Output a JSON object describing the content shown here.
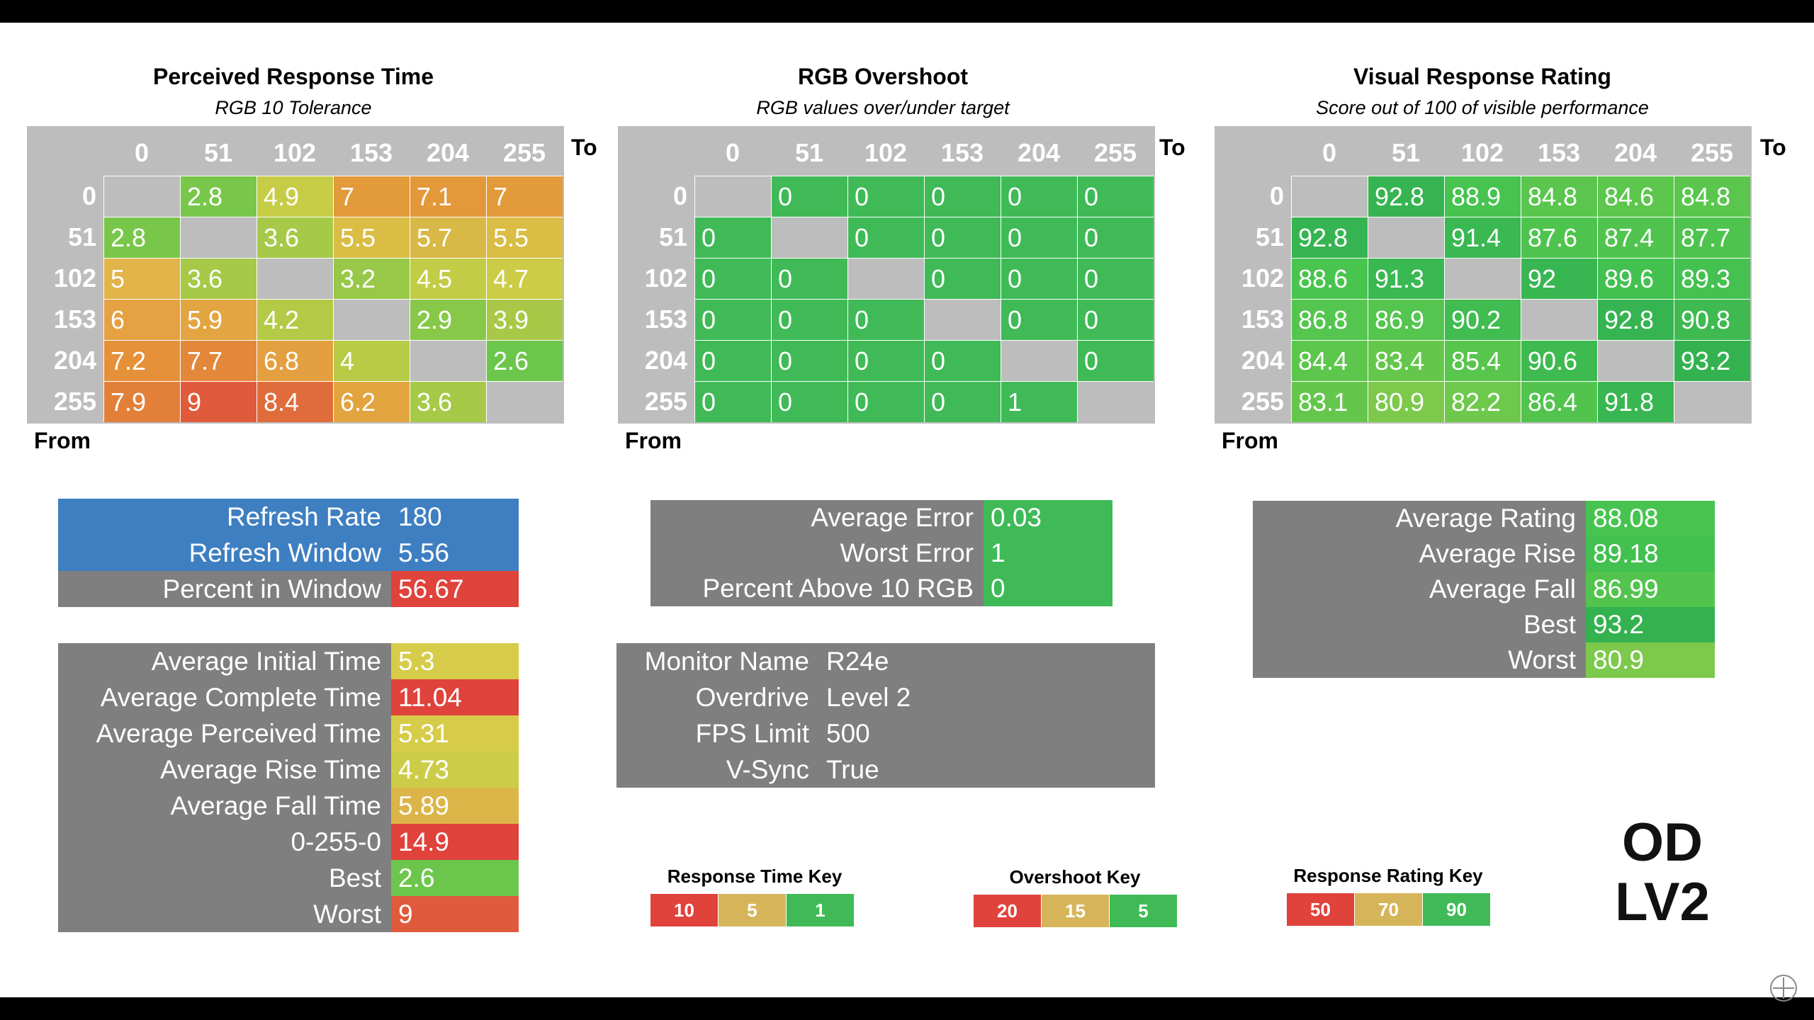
{
  "colors": {
    "gray_panel": "#7f7f7f",
    "blue_panel": "#3e7fc1",
    "header_gray": "#bdbdbd",
    "red": "#e0423c",
    "orange": "#e8a23c",
    "yellow": "#d6cc49",
    "lightgreen": "#8fcc4a",
    "green": "#3fba57",
    "darkgreen": "#2fae4f"
  },
  "response_time": {
    "title": "Perceived Response Time",
    "subtitle": "RGB 10 Tolerance",
    "to_label": "To",
    "from_label": "From",
    "columns": [
      "0",
      "51",
      "102",
      "153",
      "204",
      "255"
    ],
    "rows": [
      "0",
      "51",
      "102",
      "153",
      "204",
      "255"
    ],
    "cells": [
      [
        "",
        "2.8",
        "4.9",
        "7",
        "7.1",
        "7"
      ],
      [
        "2.8",
        "",
        "3.6",
        "5.5",
        "5.7",
        "5.5"
      ],
      [
        "5",
        "3.6",
        "",
        "3.2",
        "4.5",
        "4.7"
      ],
      [
        "6",
        "5.9",
        "4.2",
        "",
        "2.9",
        "3.9"
      ],
      [
        "7.2",
        "7.7",
        "6.8",
        "4",
        "",
        "2.6"
      ],
      [
        "7.9",
        "9",
        "8.4",
        "6.2",
        "3.6",
        ""
      ]
    ],
    "cell_colors": [
      [
        "#bdbdbd",
        "#79c74a",
        "#c7cc46",
        "#e39a3a",
        "#e3983a",
        "#e39a3a"
      ],
      [
        "#79c74a",
        "#bdbdbd",
        "#a6c948",
        "#d9bd45",
        "#d8b846",
        "#d9bd45"
      ],
      [
        "#e2b44a",
        "#a6c948",
        "#bdbdbd",
        "#98c848",
        "#c2cc47",
        "#cccc46"
      ],
      [
        "#e6a142",
        "#e3a542",
        "#b4ca46",
        "#bdbdbd",
        "#87c849",
        "#aac847"
      ],
      [
        "#e4913a",
        "#e3873b",
        "#e39f40",
        "#b8cb46",
        "#bdbdbd",
        "#6dc64c"
      ],
      [
        "#e2803a",
        "#e05b3b",
        "#e06c3b",
        "#e2a43e",
        "#a6c948",
        "#bdbdbd"
      ]
    ]
  },
  "overshoot": {
    "title": "RGB Overshoot",
    "subtitle": "RGB values over/under target",
    "to_label": "To",
    "from_label": "From",
    "columns": [
      "0",
      "51",
      "102",
      "153",
      "204",
      "255"
    ],
    "rows": [
      "0",
      "51",
      "102",
      "153",
      "204",
      "255"
    ],
    "cells": [
      [
        "",
        "0",
        "0",
        "0",
        "0",
        "0"
      ],
      [
        "0",
        "",
        "0",
        "0",
        "0",
        "0"
      ],
      [
        "0",
        "0",
        "",
        "0",
        "0",
        "0"
      ],
      [
        "0",
        "0",
        "0",
        "",
        "0",
        "0"
      ],
      [
        "0",
        "0",
        "0",
        "0",
        "",
        "0"
      ],
      [
        "0",
        "0",
        "0",
        "0",
        "1",
        ""
      ]
    ]
  },
  "rating": {
    "title": "Visual Response Rating",
    "subtitle": "Score out of 100 of visible performance",
    "to_label": "To",
    "from_label": "From",
    "columns": [
      "0",
      "51",
      "102",
      "153",
      "204",
      "255"
    ],
    "rows": [
      "0",
      "51",
      "102",
      "153",
      "204",
      "255"
    ],
    "cells": [
      [
        "",
        "92.8",
        "88.9",
        "84.8",
        "84.6",
        "84.8"
      ],
      [
        "92.8",
        "",
        "91.4",
        "87.6",
        "87.4",
        "87.7"
      ],
      [
        "88.6",
        "91.3",
        "",
        "92",
        "89.6",
        "89.3"
      ],
      [
        "86.8",
        "86.9",
        "90.2",
        "",
        "92.8",
        "90.8"
      ],
      [
        "84.4",
        "83.4",
        "85.4",
        "90.6",
        "",
        "93.2"
      ],
      [
        "83.1",
        "80.9",
        "82.2",
        "86.4",
        "91.8",
        ""
      ]
    ],
    "cell_colors": [
      [
        "#bdbdbd",
        "#36b451",
        "#46c44f",
        "#5ac64d",
        "#5cc64d",
        "#5ac64d"
      ],
      [
        "#36b451",
        "#bdbdbd",
        "#3ab852",
        "#4ec44e",
        "#50c44e",
        "#4ec44e"
      ],
      [
        "#48c44f",
        "#3ab852",
        "#bdbdbd",
        "#38b652",
        "#42c050",
        "#44c150"
      ],
      [
        "#54c54e",
        "#54c54e",
        "#40bc51",
        "#bdbdbd",
        "#36b451",
        "#3eba51"
      ],
      [
        "#5cc64d",
        "#64c74c",
        "#58c54d",
        "#3eba51",
        "#bdbdbd",
        "#34b250"
      ],
      [
        "#64c74c",
        "#7cc94b",
        "#6ec84c",
        "#52c44e",
        "#38b652",
        "#bdbdbd"
      ]
    ]
  },
  "refresh_stats": [
    {
      "label": "Refresh Rate",
      "value": "180",
      "label_color": "#3e7fc1",
      "value_color": "#3e7fc1"
    },
    {
      "label": "Refresh Window",
      "value": "5.56",
      "label_color": "#3e7fc1",
      "value_color": "#3e7fc1"
    },
    {
      "label": "Percent in Window",
      "value": "56.67",
      "label_color": "#7f7f7f",
      "value_color": "#e0423c"
    }
  ],
  "time_stats": [
    {
      "label": "Average Initial Time",
      "value": "5.3",
      "value_color": "#d6cc49"
    },
    {
      "label": "Average Complete Time",
      "value": "11.04",
      "value_color": "#e0423c"
    },
    {
      "label": "Average Perceived Time",
      "value": "5.31",
      "value_color": "#d6cc49"
    },
    {
      "label": "Average Rise Time",
      "value": "4.73",
      "value_color": "#cccc49"
    },
    {
      "label": "Average Fall Time",
      "value": "5.89",
      "value_color": "#dcb548"
    },
    {
      "label": "0-255-0",
      "value": "14.9",
      "value_color": "#e0423c"
    },
    {
      "label": "Best",
      "value": "2.6",
      "value_color": "#6dc64c"
    },
    {
      "label": "Worst",
      "value": "9",
      "value_color": "#e05b3b"
    }
  ],
  "error_stats": [
    {
      "label": "Average Error",
      "value": "0.03",
      "value_color": "#3fba57"
    },
    {
      "label": "Worst Error",
      "value": "1",
      "value_color": "#3fba57"
    },
    {
      "label": "Percent Above 10 RGB",
      "value": "0",
      "value_color": "#3fba57"
    }
  ],
  "monitor_info": [
    {
      "label": "Monitor Name",
      "value": "R24e"
    },
    {
      "label": "Overdrive",
      "value": "Level 2"
    },
    {
      "label": "FPS Limit",
      "value": "500"
    },
    {
      "label": "V-Sync",
      "value": "True"
    }
  ],
  "rating_stats": [
    {
      "label": "Average Rating",
      "value": "88.08",
      "value_color": "#46c44f"
    },
    {
      "label": "Average Rise",
      "value": "89.18",
      "value_color": "#42c050"
    },
    {
      "label": "Average Fall",
      "value": "86.99",
      "value_color": "#52c44e"
    },
    {
      "label": "Best",
      "value": "93.2",
      "value_color": "#34b250"
    },
    {
      "label": "Worst",
      "value": "80.9",
      "value_color": "#7cc94b"
    }
  ],
  "keys": {
    "response_time": {
      "title": "Response Time Key",
      "cells": [
        {
          "label": "10",
          "color": "#e0423c"
        },
        {
          "label": "5",
          "color": "#d6b55a"
        },
        {
          "label": "1",
          "color": "#3fba57"
        }
      ]
    },
    "overshoot": {
      "title": "Overshoot Key",
      "cells": [
        {
          "label": "20",
          "color": "#e0423c"
        },
        {
          "label": "15",
          "color": "#d6b55a"
        },
        {
          "label": "5",
          "color": "#3fba57"
        }
      ]
    },
    "rating": {
      "title": "Response Rating Key",
      "cells": [
        {
          "label": "50",
          "color": "#e0423c"
        },
        {
          "label": "70",
          "color": "#d6b55a"
        },
        {
          "label": "90",
          "color": "#3fba57"
        }
      ]
    }
  },
  "od_label": {
    "line1": "OD",
    "line2": "LV2"
  }
}
